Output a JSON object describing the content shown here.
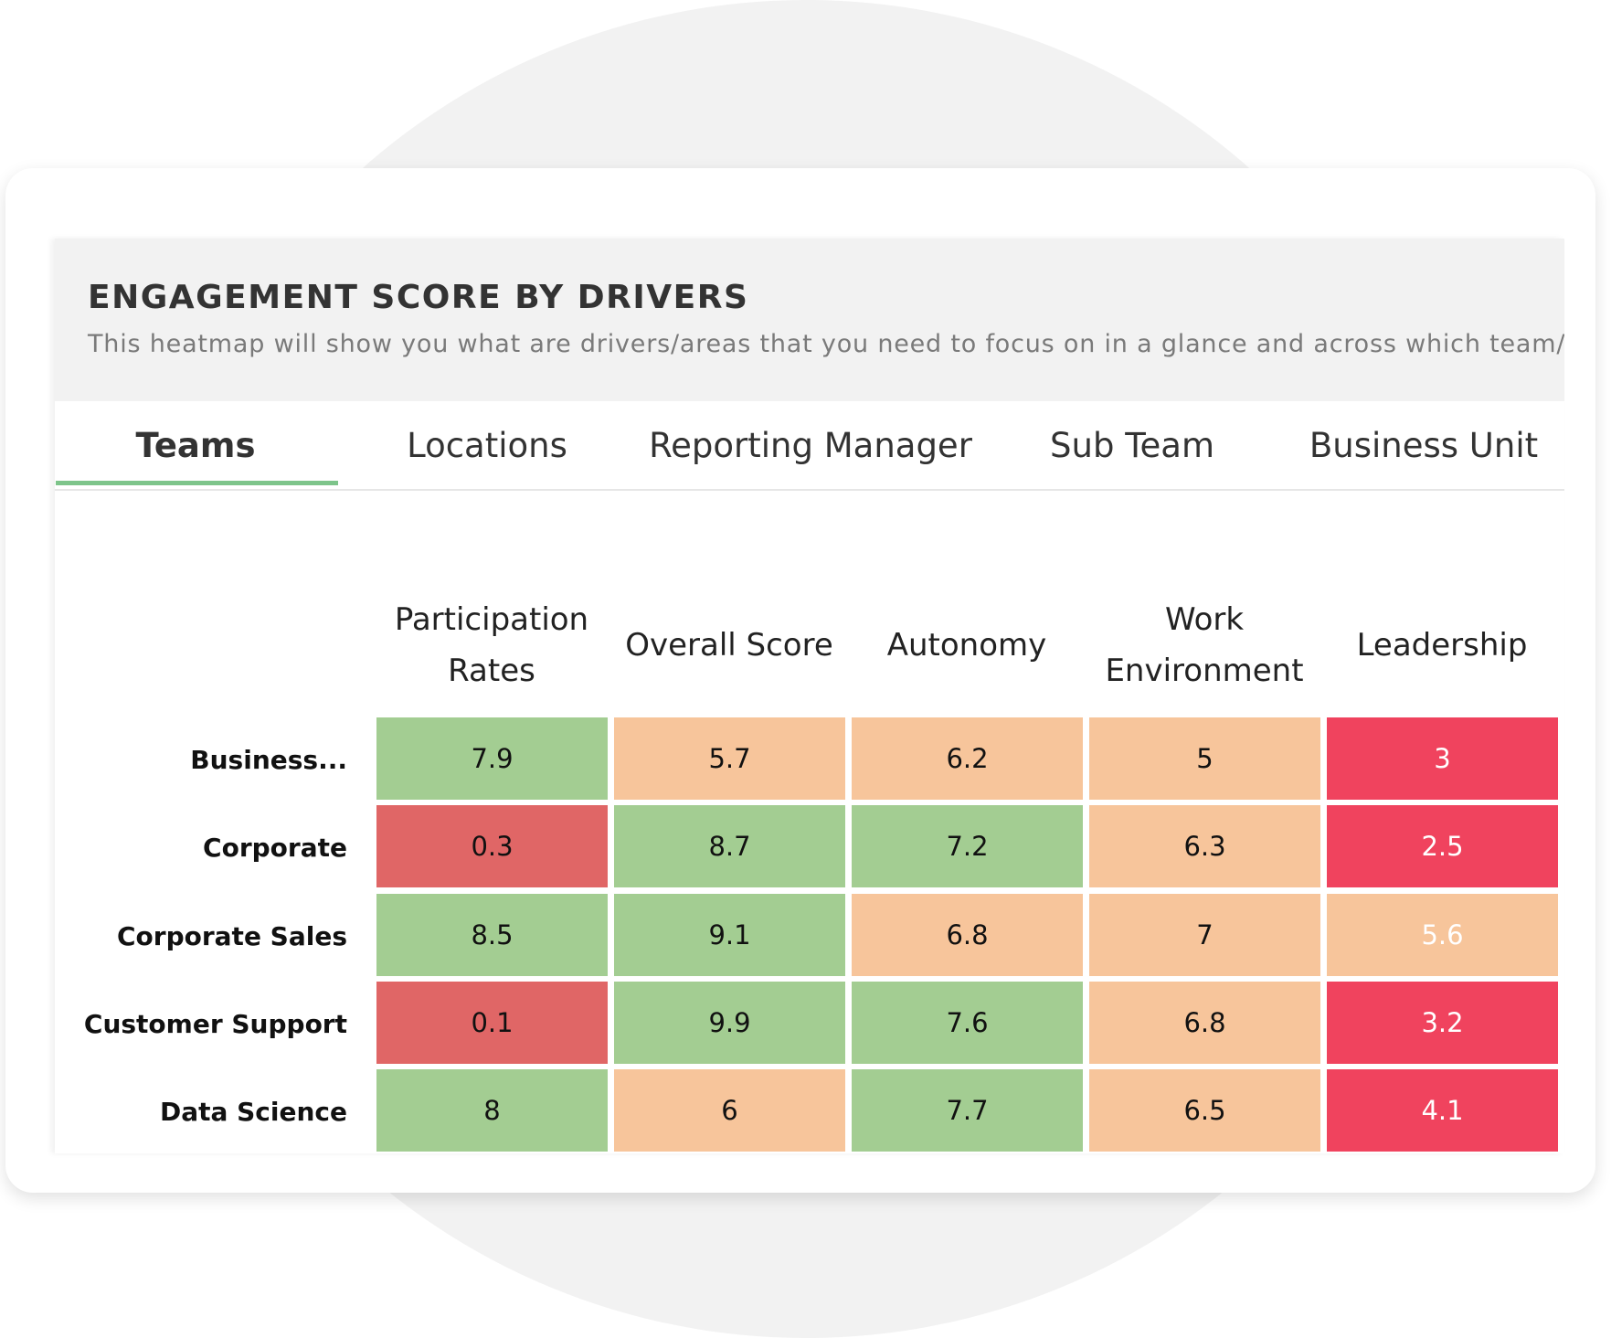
{
  "header": {
    "title": "ENGAGEMENT SCORE BY DRIVERS",
    "subtitle": "This heatmap will show you what are drivers/areas that you need to focus on in a glance and across which team/location"
  },
  "tabs": [
    "Teams",
    "Locations",
    "Reporting Manager",
    "Sub Team",
    "Business Unit"
  ],
  "active_tab": 0,
  "table": {
    "columns": [
      "Participation Rates",
      "Overall Score",
      "Autonomy",
      "Work Environment",
      "Leadership"
    ],
    "rows": [
      {
        "label": "Business...",
        "values": [
          "7.9",
          "5.7",
          "6.2",
          "5",
          "3"
        ],
        "colors": [
          "#a3cd92",
          "#f7c59b",
          "#f7c59b",
          "#f7c59b",
          "#f0435e"
        ]
      },
      {
        "label": "Corporate",
        "values": [
          "0.3",
          "8.7",
          "7.2",
          "6.3",
          "2.5"
        ],
        "colors": [
          "#e06666",
          "#a3cd92",
          "#a3cd92",
          "#f7c59b",
          "#f0435e"
        ]
      },
      {
        "label": "Corporate Sales",
        "values": [
          "8.5",
          "9.1",
          "6.8",
          "7",
          "5.6"
        ],
        "colors": [
          "#a3cd92",
          "#a3cd92",
          "#f7c59b",
          "#f7c59b",
          "#f7c59b"
        ]
      },
      {
        "label": "Customer Support",
        "values": [
          "0.1",
          "9.9",
          "7.6",
          "6.8",
          "3.2"
        ],
        "colors": [
          "#e06666",
          "#a3cd92",
          "#a3cd92",
          "#f7c59b",
          "#f0435e"
        ]
      },
      {
        "label": "Data Science",
        "values": [
          "8",
          "6",
          "7.7",
          "6.5",
          "4.1"
        ],
        "colors": [
          "#a3cd92",
          "#f7c59b",
          "#a3cd92",
          "#f7c59b",
          "#f0435e"
        ]
      }
    ]
  }
}
